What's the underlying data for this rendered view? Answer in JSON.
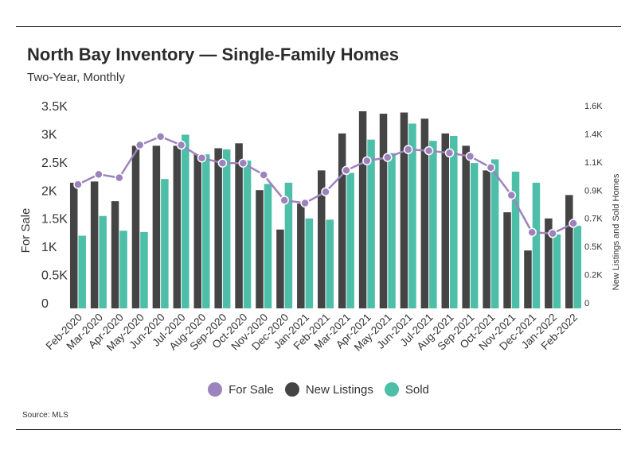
{
  "header": {
    "title": "North Bay Inventory — Single-Family Homes",
    "subtitle": "Two-Year, Monthly"
  },
  "footer": {
    "source": "Source: MLS"
  },
  "colors": {
    "for_sale": "#9d83bd",
    "new_listings": "#444444",
    "sold": "#4dbfa8"
  },
  "chart_data": {
    "type": "bar",
    "categories": [
      "Feb-2020",
      "Mar-2020",
      "Apr-2020",
      "May-2020",
      "Jun-2020",
      "Jul-2020",
      "Aug-2020",
      "Sep-2020",
      "Oct-2020",
      "Nov-2020",
      "Dec-2020",
      "Jan-2021",
      "Feb-2021",
      "Mar-2021",
      "Apr-2021",
      "May-2021",
      "Jun-2021",
      "Jul-2021",
      "Aug-2021",
      "Sep-2021",
      "Oct-2021",
      "Nov-2021",
      "Dec-2021",
      "Jan-2022",
      "Feb-2022"
    ],
    "ylabel": "For Sale",
    "ylabel_right": "New Listings and Sold Homes",
    "ylim": [
      0,
      3500
    ],
    "ylim_right": [
      0,
      1600
    ],
    "yticks": [
      "0",
      "0.5K",
      "1K",
      "1.5K",
      "2K",
      "2.5K",
      "3K",
      "3.5K"
    ],
    "yticks_right": [
      "0",
      "0.2K",
      "0.5K",
      "0.7K",
      "0.9K",
      "1.1K",
      "1.4K",
      "1.6K"
    ],
    "legend_position": "bottom",
    "series": [
      {
        "name": "For Sale",
        "kind": "line",
        "axis": "left",
        "values": [
          2200,
          2380,
          2320,
          2900,
          3050,
          2900,
          2670,
          2580,
          2580,
          2370,
          1920,
          1870,
          2070,
          2450,
          2620,
          2680,
          2820,
          2800,
          2760,
          2700,
          2500,
          2010,
          1350,
          1330,
          1510
        ]
      },
      {
        "name": "New Listings",
        "kind": "bar",
        "axis": "right",
        "values": [
          1020,
          1030,
          870,
          1320,
          1320,
          1320,
          1250,
          1300,
          1340,
          960,
          640,
          850,
          1120,
          1420,
          1600,
          1580,
          1590,
          1540,
          1420,
          1320,
          1120,
          780,
          470,
          730,
          920
        ]
      },
      {
        "name": "Sold",
        "kind": "bar",
        "axis": "right",
        "values": [
          590,
          750,
          630,
          620,
          1050,
          1410,
          1250,
          1290,
          1200,
          1010,
          1020,
          730,
          720,
          1100,
          1370,
          1260,
          1500,
          1360,
          1400,
          1180,
          1210,
          1110,
          1020,
          600,
          670
        ]
      }
    ]
  }
}
